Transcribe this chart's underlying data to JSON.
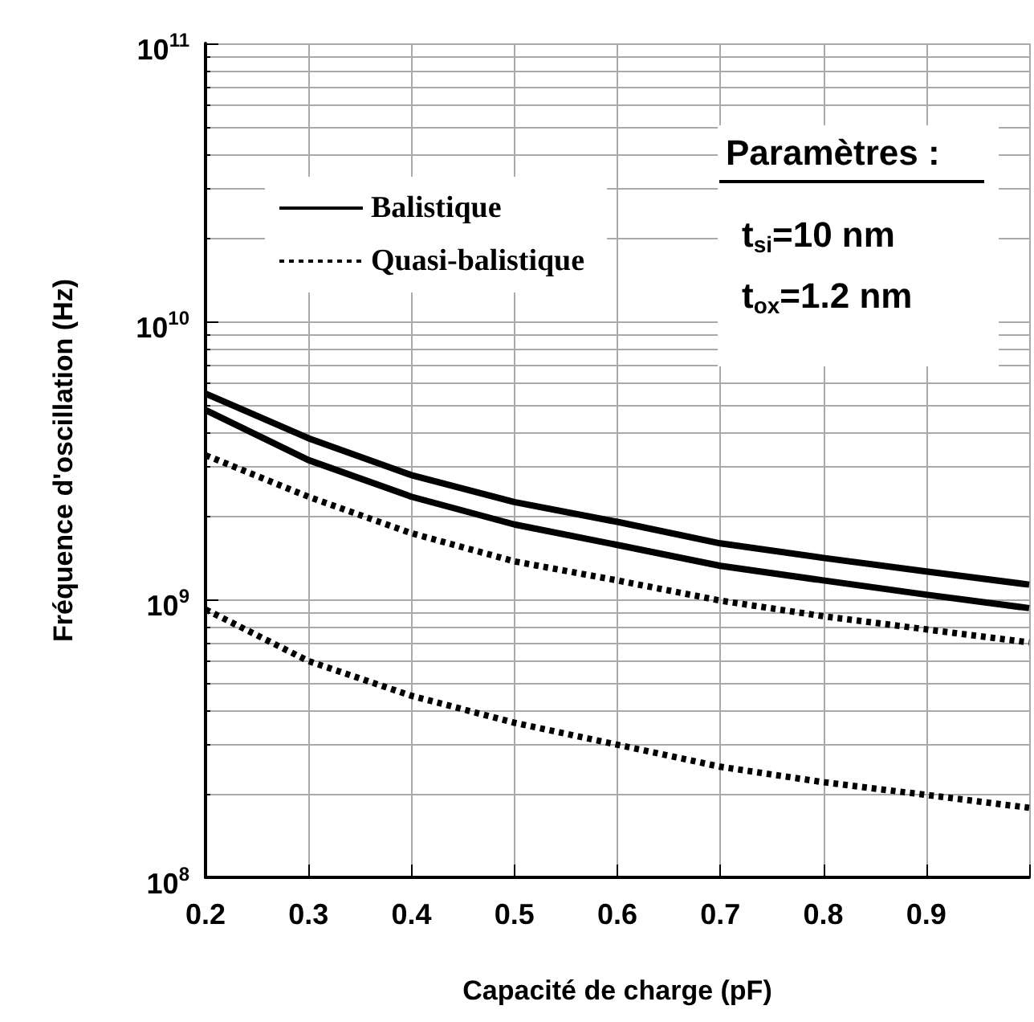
{
  "chart_data": {
    "type": "line",
    "xlabel": "Capacité de charge (pF)",
    "ylabel": "Fréquence d'oscillation (Hz)",
    "x": [
      0.2,
      0.3,
      0.4,
      0.5,
      0.6,
      0.7,
      0.8,
      0.9,
      1.0
    ],
    "series": [
      {
        "name": "Balistique",
        "color": "#000000",
        "line_style": "solid",
        "values": [
          5500000000.0,
          3800000000.0,
          2800000000.0,
          2240000000.0,
          1900000000.0,
          1590000000.0,
          1410000000.0,
          1260000000.0,
          1130000000.0
        ]
      },
      {
        "color": "#000000",
        "line_style": "solid",
        "values": [
          4800000000.0,
          3170000000.0,
          2340000000.0,
          1860000000.0,
          1570000000.0,
          1320000000.0,
          1170000000.0,
          1040000000.0,
          930000000.0
        ]
      },
      {
        "name": "Quasi-balistique",
        "color": "#000000",
        "line_style": "dotted",
        "values": [
          3300000000.0,
          2340000000.0,
          1730000000.0,
          1370000000.0,
          1170000000.0,
          990000000.0,
          870000000.0,
          780000000.0,
          700000000.0
        ]
      },
      {
        "color": "#000000",
        "line_style": "dotted",
        "values": [
          920000000.0,
          600000000.0,
          450000000.0,
          360000000.0,
          300000000.0,
          250000000.0,
          220000000.0,
          198000000.0,
          178000000.0
        ]
      }
    ],
    "log": "y",
    "ylim": [
      100000000.0,
      100000000000.0
    ],
    "yticks": [
      {
        "value": 100000000.0,
        "label": "10$^{8}$"
      },
      {
        "value": 1000000000.0,
        "label": "10$^{9}$"
      },
      {
        "value": 10000000000.0,
        "label": "10$^{10}$"
      },
      {
        "value": 100000000000.0,
        "label": "10$^{11}$"
      }
    ],
    "xlim": [
      0.2,
      1.0
    ],
    "xticks": [
      0.2,
      0.3,
      0.4,
      0.5,
      0.6,
      0.7,
      0.8,
      0.9,
      {
        "value": 1.0,
        "label": null
      }
    ],
    "grid": true,
    "legend": "top left",
    "marker": "none",
    "annotations": [
      "Paramètres :",
      "t$_{si}$=10 nm",
      "t$_{ox}$=1.2 nm"
    ]
  }
}
